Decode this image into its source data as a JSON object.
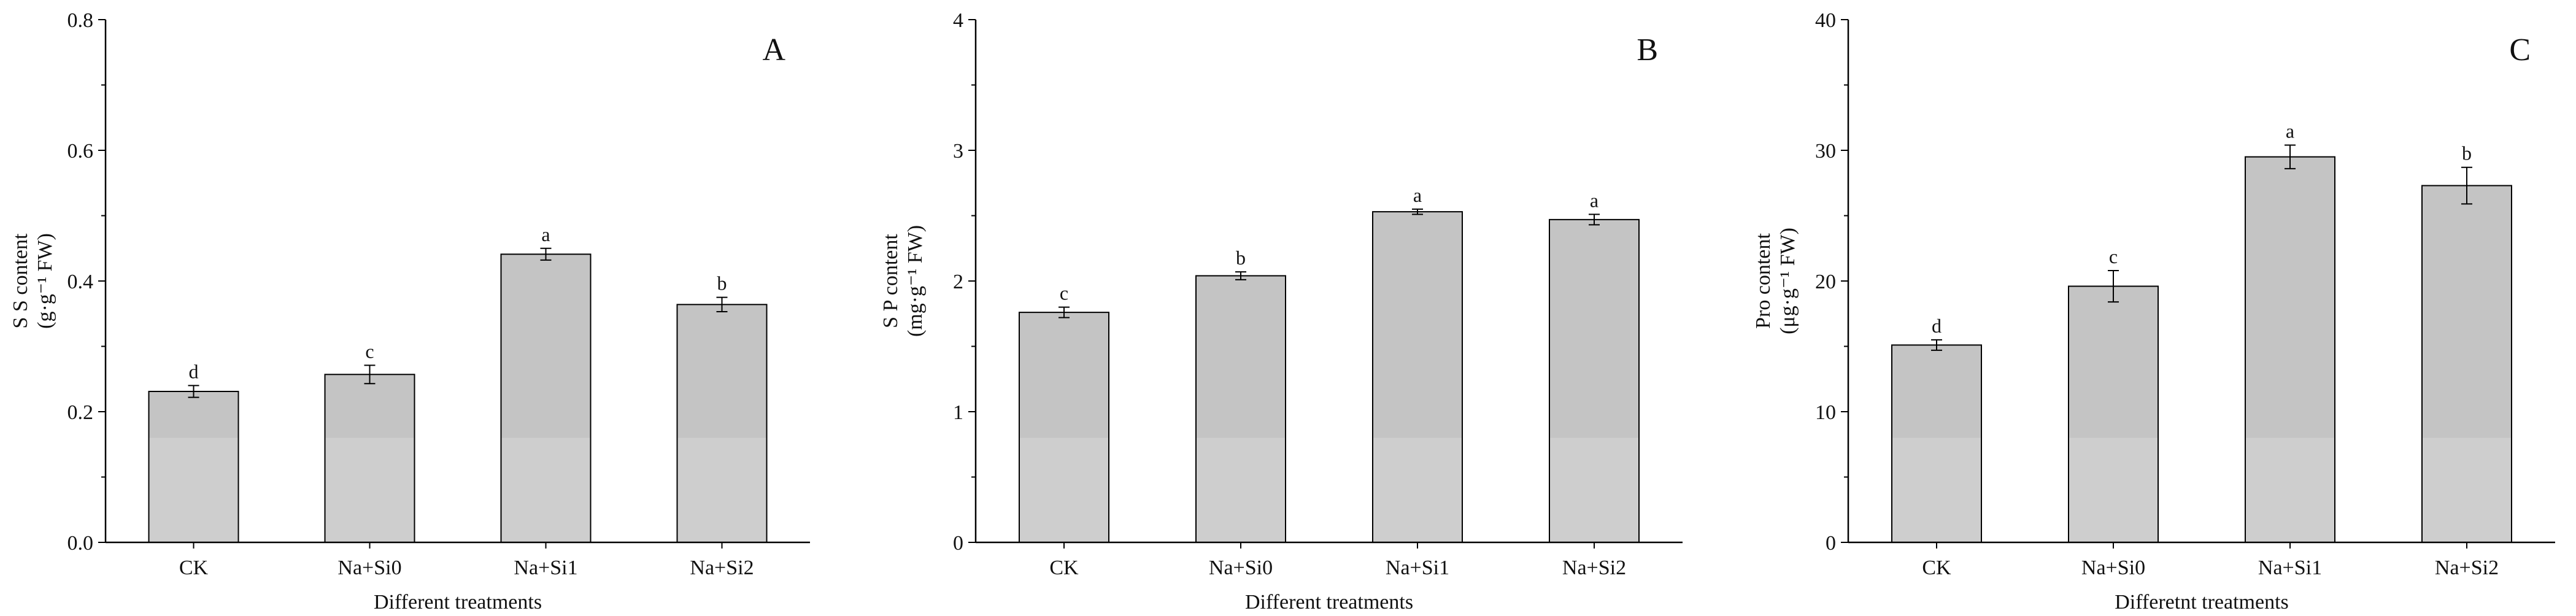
{
  "chart_data": [
    {
      "type": "bar",
      "panel_label": "A",
      "categories": [
        "CK",
        "Na+Si0",
        "Na+Si1",
        "Na+Si2"
      ],
      "values": [
        0.231,
        0.257,
        0.441,
        0.364
      ],
      "errors": [
        0.009,
        0.014,
        0.009,
        0.011
      ],
      "significance": [
        "d",
        "c",
        "a",
        "b"
      ],
      "ylabel_line1": "S S  content",
      "ylabel_line2": "(g·g⁻¹ FW)",
      "xlabel": "Different treatments",
      "ylim": [
        0,
        0.8
      ],
      "yticks": [
        0.0,
        0.2,
        0.4,
        0.6,
        0.8
      ],
      "ytick_labels": [
        "0.0",
        "0.2",
        "0.4",
        "0.6",
        "0.8"
      ]
    },
    {
      "type": "bar",
      "panel_label": "B",
      "categories": [
        "CK",
        "Na+Si0",
        "Na+Si1",
        "Na+Si2"
      ],
      "values": [
        1.76,
        2.04,
        2.53,
        2.47
      ],
      "errors": [
        0.04,
        0.03,
        0.02,
        0.04
      ],
      "significance": [
        "c",
        "b",
        "a",
        "a"
      ],
      "ylabel_line1": "S P content",
      "ylabel_line2": "(mg·g⁻¹ FW)",
      "xlabel": "Different treatments",
      "ylim": [
        0,
        4
      ],
      "yticks": [
        0,
        1,
        2,
        3,
        4
      ],
      "ytick_labels": [
        "0",
        "1",
        "2",
        "3",
        "4"
      ]
    },
    {
      "type": "bar",
      "panel_label": "C",
      "categories": [
        "CK",
        "Na+Si0",
        "Na+Si1",
        "Na+Si2"
      ],
      "values": [
        15.1,
        19.6,
        29.5,
        27.3
      ],
      "errors": [
        0.4,
        1.2,
        0.9,
        1.4
      ],
      "significance": [
        "d",
        "c",
        "a",
        "b"
      ],
      "ylabel_line1": "Pro content",
      "ylabel_line2": "(μg·g⁻¹ FW)",
      "xlabel": "Differetnt treatments",
      "ylim": [
        0,
        40
      ],
      "yticks": [
        0,
        10,
        20,
        30,
        40
      ],
      "ytick_labels": [
        "0",
        "10",
        "20",
        "30",
        "40"
      ]
    }
  ],
  "colors": {
    "bar_upper": "#c4c4c4",
    "bar_lower": "#cecece",
    "axis": "#000000",
    "text": "#111111"
  }
}
